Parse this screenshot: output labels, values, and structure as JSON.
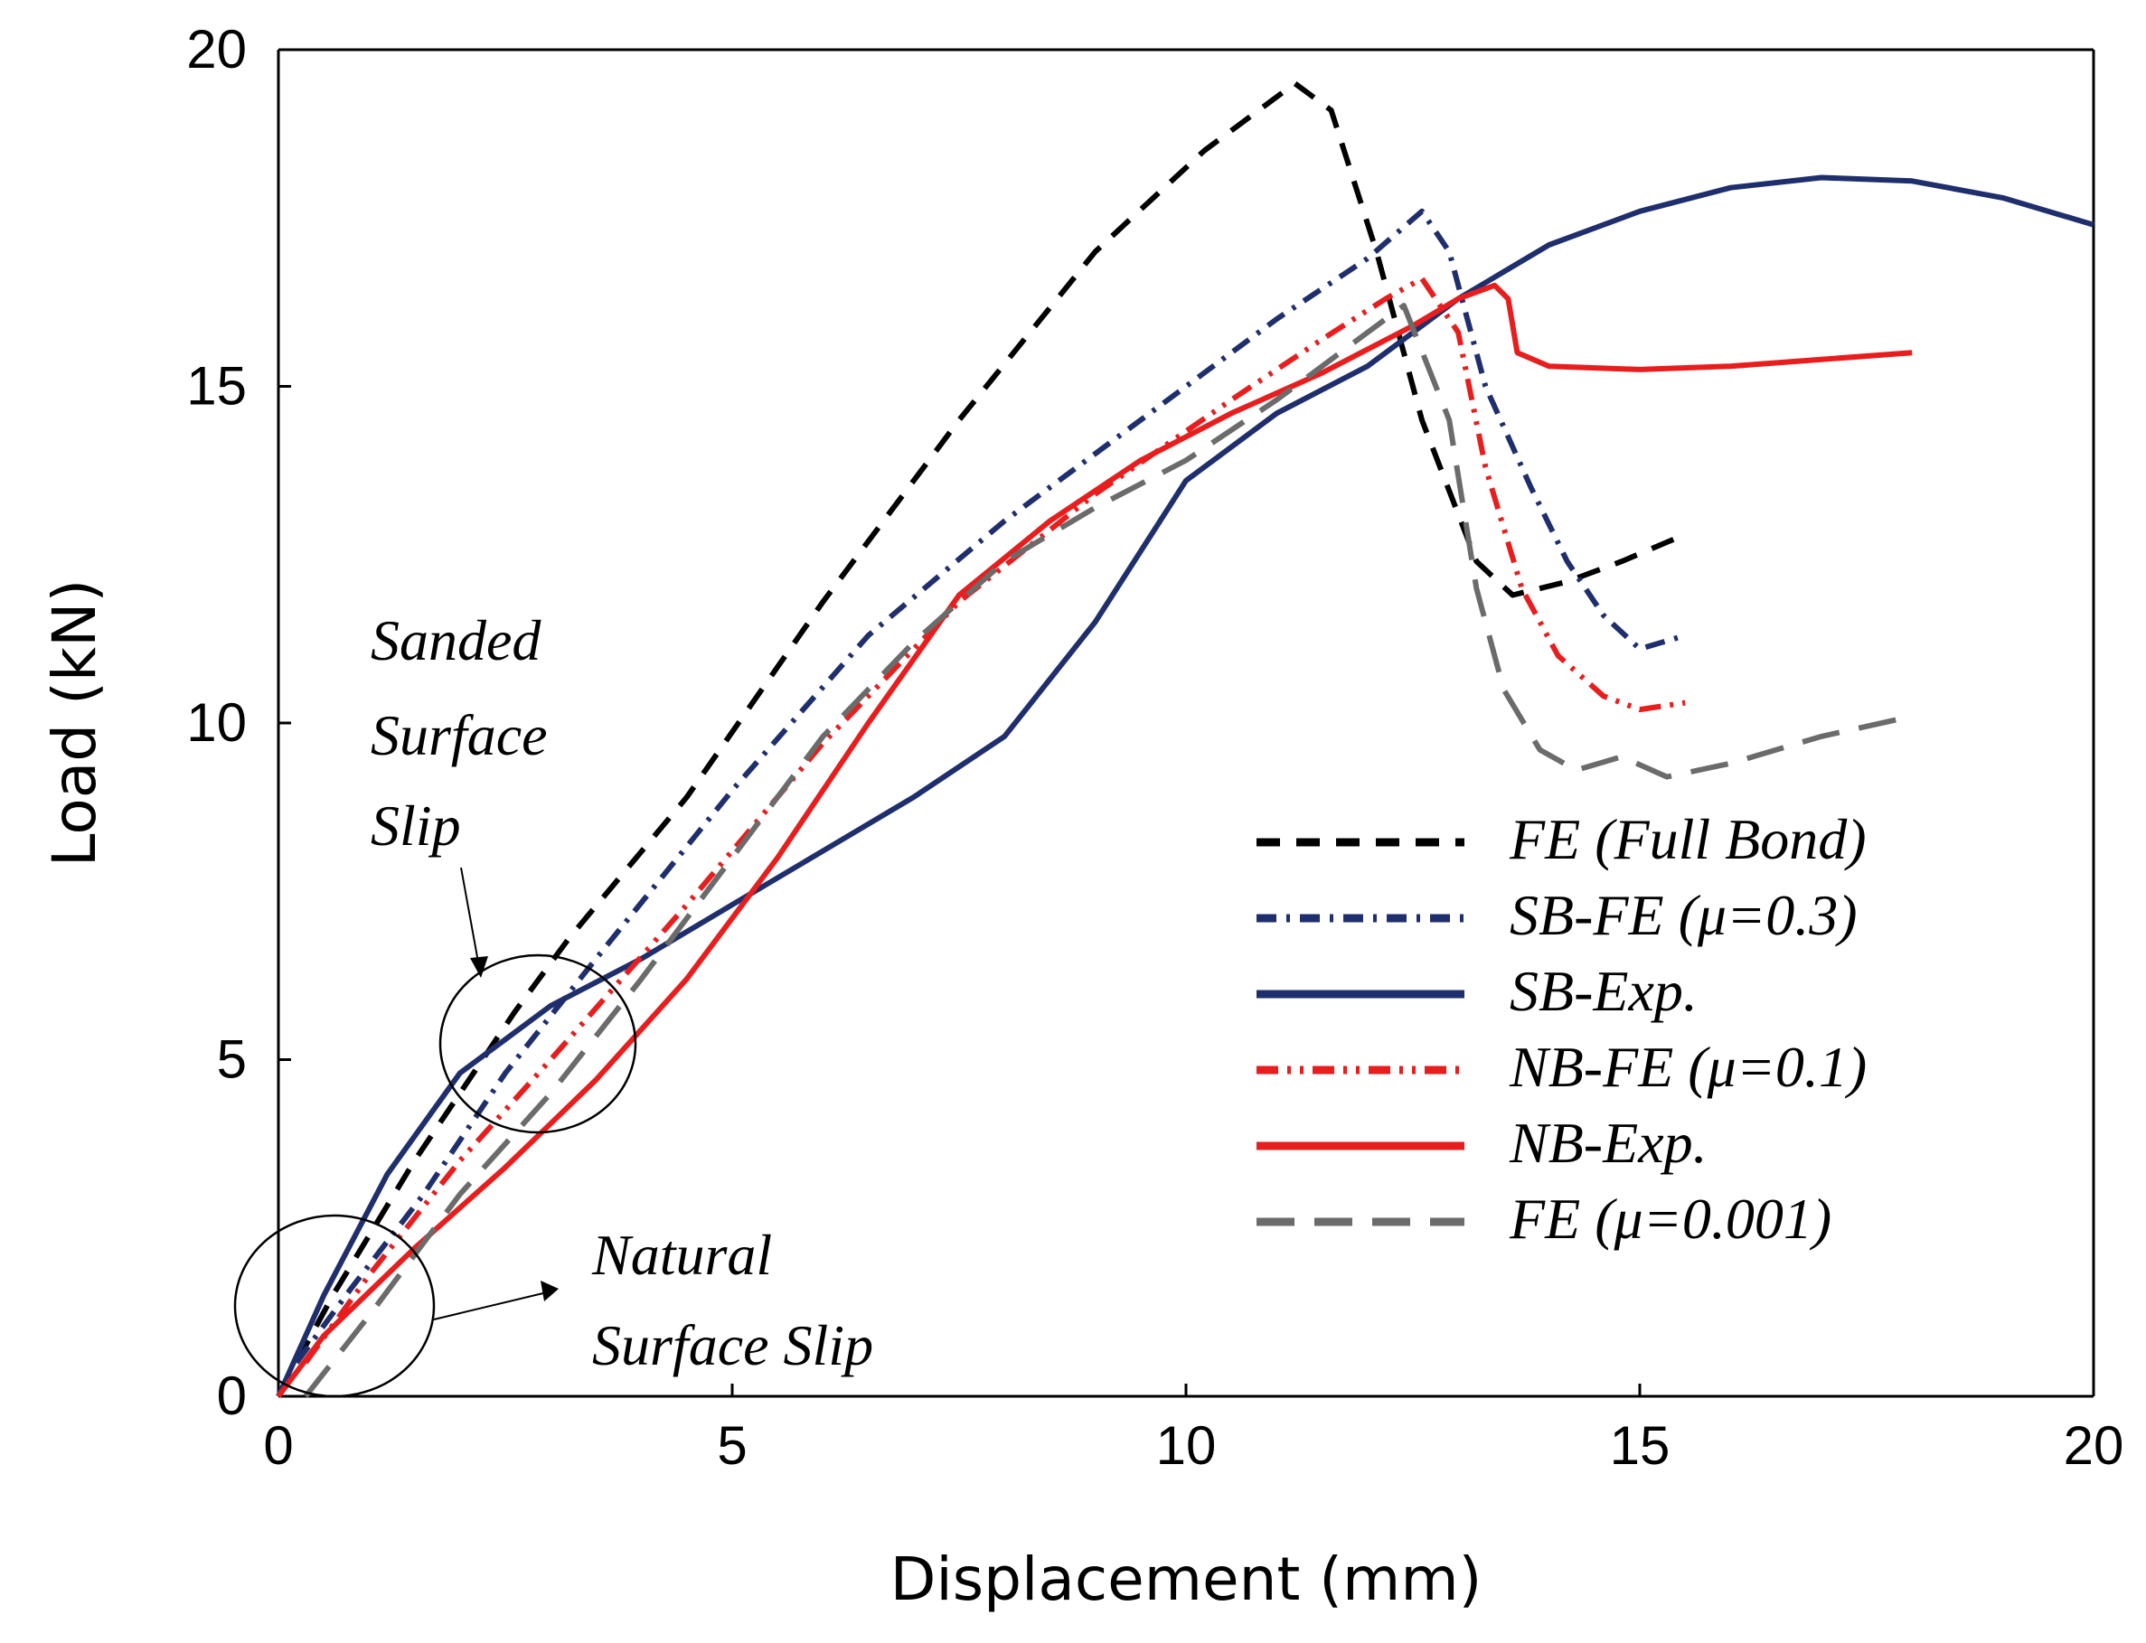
{
  "chart_data": {
    "type": "line",
    "title": "",
    "xlabel": "Displacement (mm)",
    "ylabel": "Load (kN)",
    "xlim": [
      0,
      20
    ],
    "ylim": [
      0,
      20
    ],
    "xticks": [
      0,
      5,
      10,
      15,
      20
    ],
    "yticks": [
      0,
      5,
      10,
      15,
      20
    ],
    "grid": false,
    "legend_position": "bottom-right",
    "series": [
      {
        "name": "FE (Full Bond)",
        "color": "#000000",
        "style": "dashed",
        "x": [
          0,
          0.6,
          1.5,
          2.6,
          3.2,
          4.5,
          6.0,
          7.5,
          9.0,
          10.2,
          11.2,
          11.6,
          12.1,
          12.6,
          13.2,
          13.6,
          14.2,
          14.8,
          15.5
        ],
        "y": [
          0,
          1.5,
          3.5,
          5.7,
          6.8,
          8.9,
          11.8,
          14.5,
          17.0,
          18.5,
          19.5,
          19.1,
          17.0,
          14.5,
          12.4,
          11.9,
          12.1,
          12.4,
          12.8
        ]
      },
      {
        "name": "SB-FE (μ=0.3)",
        "color": "#1f2f6e",
        "style": "dash-dot",
        "x": [
          0.2,
          0.8,
          1.6,
          2.5,
          3.5,
          5.0,
          6.5,
          8.0,
          9.5,
          11.0,
          12.0,
          12.6,
          12.9,
          13.3,
          13.8,
          14.2,
          14.6,
          15.0,
          15.5
        ],
        "y": [
          0.5,
          1.6,
          3.0,
          4.8,
          6.5,
          9.0,
          11.3,
          13.0,
          14.5,
          16.0,
          16.9,
          17.6,
          17.0,
          15.0,
          13.5,
          12.4,
          11.6,
          11.1,
          11.3
        ]
      },
      {
        "name": "SB-Exp.",
        "color": "#1f2f6e",
        "style": "solid",
        "x": [
          0,
          0.5,
          1.2,
          2.0,
          3.0,
          4.0,
          5.0,
          6.0,
          7.0,
          8.0,
          9.0,
          10.0,
          11.0,
          12.0,
          13.0,
          14.0,
          15.0,
          16.0,
          17.0,
          18.0,
          19.0,
          20.0
        ],
        "y": [
          0,
          1.5,
          3.3,
          4.8,
          5.8,
          6.5,
          7.3,
          8.1,
          8.9,
          9.8,
          11.5,
          13.6,
          14.6,
          15.3,
          16.3,
          17.1,
          17.6,
          17.95,
          18.1,
          18.05,
          17.8,
          17.4
        ]
      },
      {
        "name": "NB-FE (μ=0.1)",
        "color": "#e81e1e",
        "style": "dash-dot-dot",
        "x": [
          0.3,
          1.0,
          2.0,
          3.0,
          4.5,
          6.0,
          7.5,
          9.0,
          10.5,
          11.5,
          12.2,
          12.6,
          13.0,
          13.3,
          13.7,
          14.1,
          14.6,
          15.0,
          15.5
        ],
        "y": [
          0.5,
          1.8,
          3.5,
          5.0,
          7.3,
          9.7,
          11.8,
          13.4,
          14.8,
          15.7,
          16.3,
          16.6,
          15.8,
          13.8,
          12.0,
          11.0,
          10.4,
          10.2,
          10.3
        ]
      },
      {
        "name": "NB-Exp.",
        "color": "#e81e1e",
        "style": "solid",
        "x": [
          0,
          0.5,
          1.5,
          2.5,
          3.5,
          4.5,
          5.5,
          6.5,
          7.5,
          8.5,
          9.5,
          10.5,
          11.5,
          12.5,
          13.0,
          13.4,
          13.55,
          13.65,
          14.0,
          15.0,
          16.0,
          17.0,
          18.0
        ],
        "y": [
          0,
          0.9,
          2.2,
          3.4,
          4.7,
          6.2,
          8.0,
          10.0,
          11.9,
          13.0,
          13.9,
          14.6,
          15.2,
          15.9,
          16.3,
          16.5,
          16.3,
          15.5,
          15.3,
          15.25,
          15.3,
          15.4,
          15.5
        ]
      },
      {
        "name": "FE (μ=0.001)",
        "color": "#6b6b6b",
        "style": "long-dash",
        "x": [
          0.3,
          1.0,
          2.0,
          3.0,
          4.0,
          5.0,
          6.0,
          7.0,
          8.0,
          9.0,
          10.0,
          11.0,
          12.0,
          12.4,
          12.9,
          13.2,
          13.5,
          13.9,
          14.3,
          14.8,
          15.3,
          16.0,
          17.0,
          18.0
        ],
        "y": [
          0,
          1.2,
          3.0,
          4.5,
          6.2,
          8.0,
          9.8,
          11.2,
          12.4,
          13.2,
          13.9,
          14.8,
          15.8,
          16.2,
          14.5,
          12.0,
          10.5,
          9.6,
          9.3,
          9.5,
          9.2,
          9.4,
          9.8,
          10.1
        ]
      }
    ],
    "annotations": [
      {
        "lines": [
          "Sanded",
          "Surface",
          "Slip"
        ],
        "circle_center": [
          2.9,
          5.2
        ]
      },
      {
        "lines": [
          "Natural",
          "Surface Slip"
        ],
        "circle_center": [
          0.6,
          1.3
        ]
      }
    ]
  }
}
